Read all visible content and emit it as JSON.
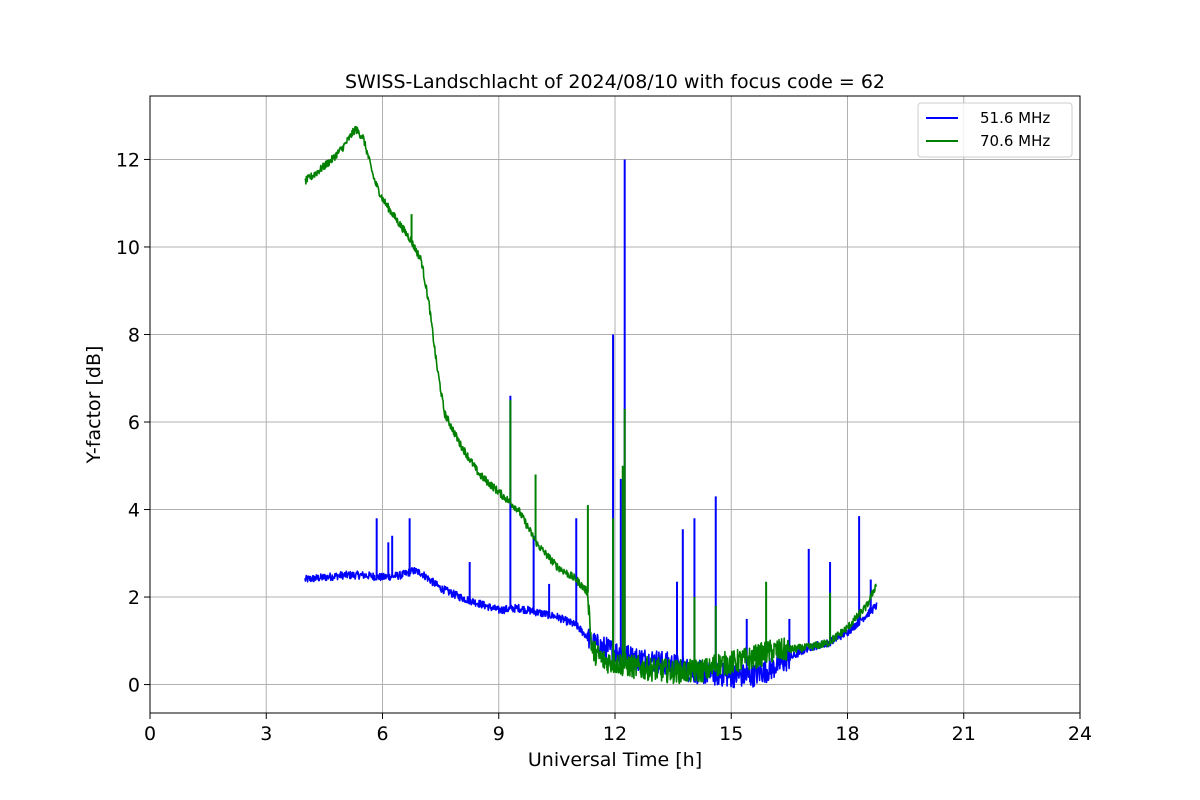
{
  "chart_data": {
    "type": "line",
    "title": "SWISS-Landschlacht of 2024/08/10 with focus code = 62",
    "xlabel": "Universal Time [h]",
    "ylabel": "Y-factor [dB]",
    "xlim": [
      0,
      24
    ],
    "ylim": [
      -0.65,
      13.45
    ],
    "xticks": [
      0,
      3,
      6,
      9,
      12,
      15,
      18,
      21,
      24
    ],
    "yticks": [
      0,
      2,
      4,
      6,
      8,
      10,
      12
    ],
    "xtick_labels": [
      "0",
      "3",
      "6",
      "9",
      "12",
      "15",
      "18",
      "21",
      "24"
    ],
    "ytick_labels": [
      "0",
      "2",
      "4",
      "6",
      "8",
      "10",
      "12"
    ],
    "grid": true,
    "legend_position": "top-right",
    "series": [
      {
        "name": "51.6 MHz",
        "color": "#0000ff",
        "points": [
          [
            4.0,
            2.4
          ],
          [
            4.5,
            2.45
          ],
          [
            5.0,
            2.5
          ],
          [
            5.5,
            2.5
          ],
          [
            6.0,
            2.45
          ],
          [
            6.5,
            2.5
          ],
          [
            6.8,
            2.6
          ],
          [
            7.0,
            2.55
          ],
          [
            7.5,
            2.2
          ],
          [
            8.0,
            2.0
          ],
          [
            8.5,
            1.85
          ],
          [
            9.0,
            1.7
          ],
          [
            9.5,
            1.75
          ],
          [
            10.0,
            1.65
          ],
          [
            10.5,
            1.55
          ],
          [
            11.0,
            1.35
          ],
          [
            11.5,
            0.9
          ],
          [
            12.0,
            0.75
          ],
          [
            12.5,
            0.6
          ],
          [
            13.0,
            0.55
          ],
          [
            13.5,
            0.45
          ],
          [
            14.0,
            0.3
          ],
          [
            14.5,
            0.25
          ],
          [
            15.0,
            0.2
          ],
          [
            15.5,
            0.2
          ],
          [
            16.0,
            0.35
          ],
          [
            16.5,
            0.6
          ],
          [
            17.0,
            0.85
          ],
          [
            17.5,
            0.95
          ],
          [
            18.0,
            1.2
          ],
          [
            18.5,
            1.6
          ],
          [
            18.75,
            1.8
          ]
        ],
        "spikes": [
          [
            5.85,
            3.8
          ],
          [
            6.15,
            3.25
          ],
          [
            6.25,
            3.4
          ],
          [
            6.7,
            3.8
          ],
          [
            8.25,
            2.8
          ],
          [
            9.3,
            6.6
          ],
          [
            9.9,
            3.4
          ],
          [
            10.3,
            2.3
          ],
          [
            11.0,
            3.8
          ],
          [
            11.95,
            8.0
          ],
          [
            12.15,
            4.7
          ],
          [
            12.25,
            12.0
          ],
          [
            13.6,
            2.35
          ],
          [
            13.75,
            3.55
          ],
          [
            14.05,
            3.8
          ],
          [
            14.6,
            4.3
          ],
          [
            15.4,
            1.5
          ],
          [
            16.5,
            1.5
          ],
          [
            17.0,
            3.1
          ],
          [
            17.55,
            2.8
          ],
          [
            18.3,
            3.85
          ],
          [
            18.6,
            2.4
          ]
        ]
      },
      {
        "name": "70.6 MHz",
        "color": "#008000",
        "points": [
          [
            4.0,
            11.5
          ],
          [
            4.3,
            11.7
          ],
          [
            4.7,
            12.0
          ],
          [
            5.0,
            12.3
          ],
          [
            5.3,
            12.7
          ],
          [
            5.5,
            12.5
          ],
          [
            5.8,
            11.5
          ],
          [
            6.0,
            11.1
          ],
          [
            6.3,
            10.7
          ],
          [
            6.7,
            10.2
          ],
          [
            7.0,
            9.7
          ],
          [
            7.2,
            8.7
          ],
          [
            7.4,
            7.3
          ],
          [
            7.6,
            6.2
          ],
          [
            8.0,
            5.5
          ],
          [
            8.5,
            4.8
          ],
          [
            9.0,
            4.4
          ],
          [
            9.5,
            4.0
          ],
          [
            10.0,
            3.2
          ],
          [
            10.5,
            2.7
          ],
          [
            11.0,
            2.4
          ],
          [
            11.3,
            2.1
          ],
          [
            11.4,
            0.8
          ],
          [
            11.7,
            0.55
          ],
          [
            12.0,
            0.5
          ],
          [
            12.5,
            0.4
          ],
          [
            13.0,
            0.35
          ],
          [
            13.5,
            0.3
          ],
          [
            14.0,
            0.3
          ],
          [
            14.5,
            0.35
          ],
          [
            14.55,
            0.45
          ],
          [
            15.0,
            0.5
          ],
          [
            15.5,
            0.6
          ],
          [
            16.0,
            0.75
          ],
          [
            16.5,
            0.8
          ],
          [
            17.0,
            0.85
          ],
          [
            17.5,
            0.95
          ],
          [
            18.0,
            1.3
          ],
          [
            18.5,
            1.8
          ],
          [
            18.75,
            2.3
          ]
        ],
        "spikes": [
          [
            6.75,
            10.75
          ],
          [
            9.3,
            6.5
          ],
          [
            9.95,
            4.8
          ],
          [
            11.3,
            4.1
          ],
          [
            11.95,
            3.8
          ],
          [
            12.2,
            5.0
          ],
          [
            12.25,
            6.3
          ],
          [
            14.05,
            2.0
          ],
          [
            14.6,
            1.8
          ],
          [
            15.9,
            2.35
          ],
          [
            17.55,
            2.1
          ]
        ]
      }
    ]
  }
}
